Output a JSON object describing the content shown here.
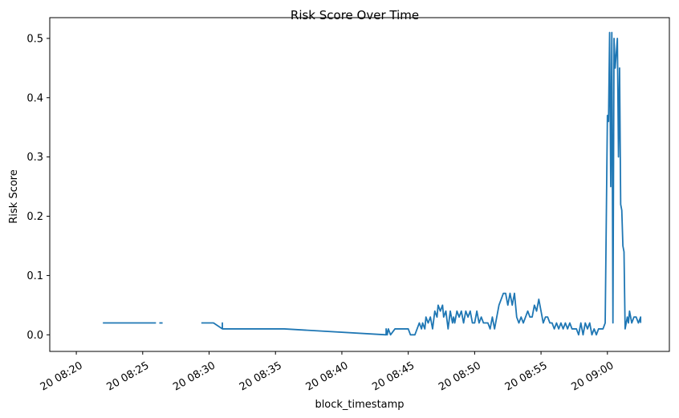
{
  "chart_data": {
    "type": "line",
    "title": "Risk Score Over Time",
    "xlabel": "block_timestamp",
    "ylabel": "Risk Score",
    "x_unit": "time (HH:MM:SS on day 20)",
    "xlim": [
      "08:18:00",
      "09:04:40"
    ],
    "ylim": [
      -0.028,
      0.535
    ],
    "grid": false,
    "colors": {
      "line": "#1f77b4",
      "axis": "#000000"
    },
    "x_ticks": [
      "20 08:20",
      "20 08:25",
      "20 08:30",
      "20 08:35",
      "20 08:40",
      "20 08:45",
      "20 08:50",
      "20 08:55",
      "20 09:00"
    ],
    "x_tick_values": [
      "08:20:00",
      "08:25:00",
      "08:30:00",
      "08:35:00",
      "08:40:00",
      "08:45:00",
      "08:50:00",
      "08:55:00",
      "09:00:00"
    ],
    "y_ticks": [
      "0.0",
      "0.1",
      "0.2",
      "0.3",
      "0.4",
      "0.5"
    ],
    "y_tick_values": [
      0.0,
      0.1,
      0.2,
      0.3,
      0.4,
      0.5
    ],
    "series": [
      {
        "segments": [
          {
            "x": [
              "08:22:00",
              "08:25:30",
              "08:26:00"
            ],
            "y": [
              0.02,
              0.02,
              0.02
            ]
          },
          {
            "x": [
              "08:26:15",
              "08:26:30"
            ],
            "y": [
              0.02,
              0.02
            ]
          },
          {
            "x": [
              "08:29:25",
              "08:30:20",
              "08:31:00",
              "08:31:00",
              "08:31:00",
              "08:35:40",
              "08:43:20",
              "08:43:20",
              "08:43:25",
              "08:43:30",
              "08:43:40",
              "08:44:00",
              "08:45:00",
              "08:45:10",
              "08:45:30",
              "08:45:40",
              "08:45:50",
              "08:46:00",
              "08:46:05",
              "08:46:15",
              "08:46:20",
              "08:46:30",
              "08:46:40",
              "08:46:50",
              "08:47:00",
              "08:47:10",
              "08:47:15",
              "08:47:25",
              "08:47:35",
              "08:47:40",
              "08:47:50",
              "08:48:00",
              "08:48:10",
              "08:48:20",
              "08:48:25",
              "08:48:30",
              "08:48:40",
              "08:48:50",
              "08:49:00",
              "08:49:10",
              "08:49:20",
              "08:49:30",
              "08:49:40",
              "08:49:50",
              "08:50:00",
              "08:50:10",
              "08:50:20",
              "08:50:30",
              "08:50:40",
              "08:50:50",
              "08:51:00",
              "08:51:10",
              "08:51:20",
              "08:51:30",
              "08:51:40",
              "08:51:50",
              "08:52:00",
              "08:52:10",
              "08:52:20",
              "08:52:30",
              "08:52:40",
              "08:52:50",
              "08:53:00",
              "08:53:10",
              "08:53:20",
              "08:53:30",
              "08:53:40",
              "08:53:50",
              "08:54:00",
              "08:54:10",
              "08:54:20",
              "08:54:30",
              "08:54:40",
              "08:54:50",
              "08:55:00",
              "08:55:10",
              "08:55:20",
              "08:55:30",
              "08:55:40",
              "08:55:50",
              "08:56:00",
              "08:56:10",
              "08:56:20",
              "08:56:30",
              "08:56:40",
              "08:56:50",
              "08:57:00",
              "08:57:10",
              "08:57:20",
              "08:57:30",
              "08:57:40",
              "08:57:50",
              "08:58:00",
              "08:58:10",
              "08:58:20",
              "08:58:30",
              "08:58:40",
              "08:58:50",
              "08:59:00",
              "08:59:10",
              "08:59:20",
              "08:59:30",
              "08:59:40",
              "08:59:50",
              "09:00:00",
              "09:00:05",
              "09:00:10",
              "09:00:15",
              "09:00:20",
              "09:00:25",
              "09:00:30",
              "09:00:35",
              "09:00:45",
              "09:00:50",
              "09:00:55",
              "09:01:00",
              "09:01:05",
              "09:01:10",
              "09:01:15",
              "09:01:20",
              "09:01:25",
              "09:01:30",
              "09:01:35",
              "09:01:40",
              "09:01:50",
              "09:02:00",
              "09:02:10",
              "09:02:20",
              "09:02:30",
              "09:02:30"
            ],
            "y": [
              0.02,
              0.02,
              0.01,
              0.02,
              0.01,
              0.01,
              0.0,
              0.01,
              0.0,
              0.01,
              0.0,
              0.01,
              0.01,
              0.0,
              0.0,
              0.01,
              0.02,
              0.01,
              0.02,
              0.01,
              0.03,
              0.02,
              0.03,
              0.01,
              0.04,
              0.03,
              0.05,
              0.04,
              0.05,
              0.03,
              0.04,
              0.01,
              0.04,
              0.02,
              0.03,
              0.02,
              0.04,
              0.03,
              0.04,
              0.02,
              0.04,
              0.03,
              0.04,
              0.02,
              0.02,
              0.04,
              0.02,
              0.03,
              0.02,
              0.02,
              0.02,
              0.01,
              0.03,
              0.01,
              0.03,
              0.05,
              0.06,
              0.07,
              0.07,
              0.05,
              0.07,
              0.05,
              0.07,
              0.03,
              0.02,
              0.03,
              0.02,
              0.03,
              0.04,
              0.03,
              0.03,
              0.05,
              0.04,
              0.06,
              0.04,
              0.02,
              0.03,
              0.03,
              0.02,
              0.02,
              0.01,
              0.02,
              0.01,
              0.02,
              0.01,
              0.02,
              0.01,
              0.02,
              0.01,
              0.01,
              0.01,
              0.0,
              0.02,
              0.0,
              0.02,
              0.01,
              0.02,
              0.0,
              0.01,
              0.0,
              0.01,
              0.01,
              0.01,
              0.02,
              0.37,
              0.36,
              0.51,
              0.25,
              0.51,
              0.02,
              0.5,
              0.45,
              0.5,
              0.3,
              0.45,
              0.22,
              0.21,
              0.15,
              0.14,
              0.01,
              0.02,
              0.03,
              0.02,
              0.04,
              0.02,
              0.03,
              0.03,
              0.02,
              0.03,
              0.02
            ]
          }
        ]
      }
    ]
  }
}
